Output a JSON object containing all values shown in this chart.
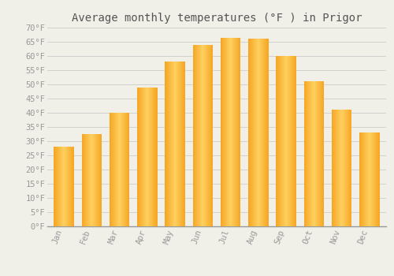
{
  "title": "Average monthly temperatures (°F ) in Prigor",
  "months": [
    "Jan",
    "Feb",
    "Mar",
    "Apr",
    "May",
    "Jun",
    "Jul",
    "Aug",
    "Sep",
    "Oct",
    "Nov",
    "Dec"
  ],
  "values": [
    28,
    32.5,
    40,
    49,
    58,
    64,
    66.5,
    66,
    60,
    51,
    41,
    33
  ],
  "bar_color_left": "#F5A623",
  "bar_color_center": "#FFD060",
  "bar_color_right": "#F5A623",
  "background_color": "#F0EFE8",
  "grid_color": "#CCCCCC",
  "ylim": [
    0,
    70
  ],
  "yticks": [
    0,
    5,
    10,
    15,
    20,
    25,
    30,
    35,
    40,
    45,
    50,
    55,
    60,
    65,
    70
  ],
  "ytick_labels": [
    "0°F",
    "5°F",
    "10°F",
    "15°F",
    "20°F",
    "25°F",
    "30°F",
    "35°F",
    "40°F",
    "45°F",
    "50°F",
    "55°F",
    "60°F",
    "65°F",
    "70°F"
  ],
  "title_fontsize": 10,
  "tick_fontsize": 7.5,
  "tick_font_color": "#999999",
  "font_family": "monospace"
}
